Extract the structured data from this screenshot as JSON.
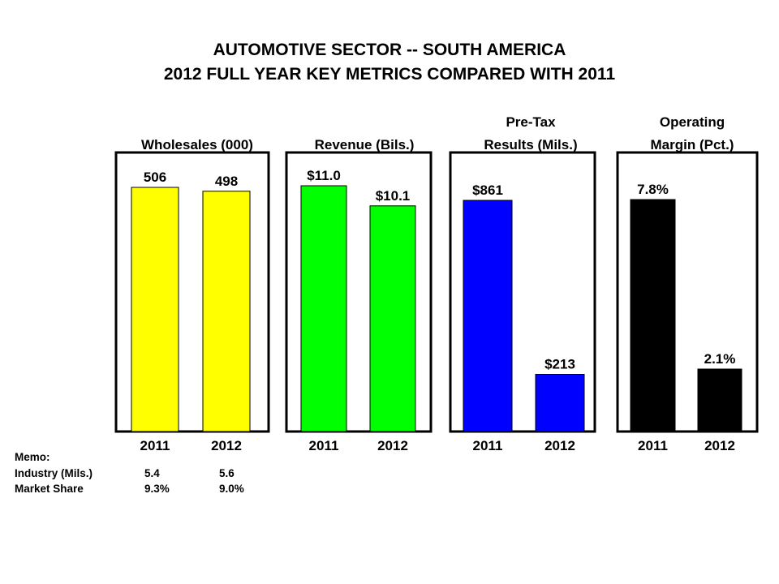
{
  "title": "AUTOMOTIVE SECTOR -- SOUTH AMERICA",
  "subtitle": "2012 FULL YEAR KEY METRICS COMPARED WITH 2011",
  "chart_data": [
    {
      "type": "bar",
      "title": [
        "Wholesales (000)"
      ],
      "categories": [
        "2011",
        "2012"
      ],
      "values": [
        506,
        498
      ],
      "labels": [
        "506",
        "498"
      ],
      "color": "#ffff00"
    },
    {
      "type": "bar",
      "title": [
        "Revenue (Bils.)"
      ],
      "categories": [
        "2011",
        "2012"
      ],
      "values": [
        11.0,
        10.1
      ],
      "labels": [
        "$11.0",
        "$10.1"
      ],
      "color": "#00ff00"
    },
    {
      "type": "bar",
      "title": [
        "Pre-Tax",
        "Results (Mils.)"
      ],
      "categories": [
        "2011",
        "2012"
      ],
      "values": [
        861,
        213
      ],
      "labels": [
        "$861",
        "$213"
      ],
      "color": "#0000ff"
    },
    {
      "type": "bar",
      "title": [
        "Operating",
        "Margin (Pct.)"
      ],
      "categories": [
        "2011",
        "2012"
      ],
      "values": [
        7.8,
        2.1
      ],
      "labels": [
        "7.8%",
        "2.1%"
      ],
      "color": "#000000"
    }
  ],
  "memo": {
    "heading": "Memo:",
    "rows": [
      {
        "label": "Industry (Mils.)",
        "v2011": "5.4",
        "v2012": "5.6"
      },
      {
        "label": "Market Share",
        "v2011": "9.3%",
        "v2012": "9.0%"
      }
    ]
  }
}
